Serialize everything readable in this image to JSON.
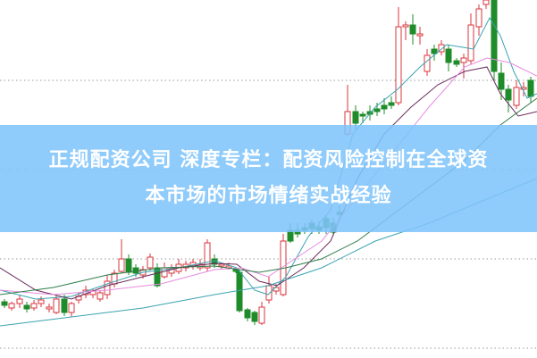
{
  "article": {
    "title_line1": "正规配资公司 深度专栏：配资风险控制在全球资",
    "title_line2": "本市场的市场情绪实战经验"
  },
  "colors": {
    "up_candle": "#d9363e",
    "down_candle": "#1e8c2a",
    "banner": "#80c4fa",
    "grid": "#999999",
    "ma_lines": [
      "#3aa3b0",
      "#6a2a5a",
      "#e58be0",
      "#2e7d4a"
    ]
  }
}
